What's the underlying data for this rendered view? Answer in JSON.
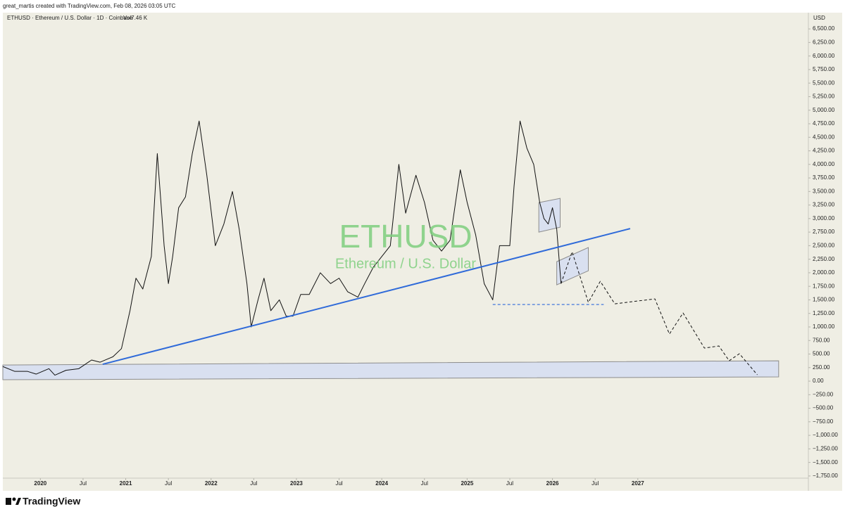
{
  "attribution": "great_martis created with TradingView.com, Feb 08, 2026 03:05 UTC",
  "branding": "TradingView",
  "chart_data": {
    "type": "line",
    "symbol_line": "ETHUSD · Ethereum / U.S. Dollar · 1D · Coinbase",
    "volume": "Vol7.46 K",
    "watermark": "ETHUSD",
    "watermark_subtitle": "Ethereum / U.S. Dollar",
    "y_axis_label": "USD",
    "grid": false,
    "xlim": [
      2019.56,
      2028.99
    ],
    "ylim": [
      -1790,
      6800
    ],
    "xticks": [
      {
        "value": 2020,
        "label": "2020"
      },
      {
        "value": 2020.5,
        "label": "Jul"
      },
      {
        "value": 2021,
        "label": "2021"
      },
      {
        "value": 2021.5,
        "label": "Jul"
      },
      {
        "value": 2022,
        "label": "2022"
      },
      {
        "value": 2022.5,
        "label": "Jul"
      },
      {
        "value": 2023,
        "label": "2023"
      },
      {
        "value": 2023.5,
        "label": "Jul"
      },
      {
        "value": 2024,
        "label": "2024"
      },
      {
        "value": 2024.5,
        "label": "Jul"
      },
      {
        "value": 2025,
        "label": "2025"
      },
      {
        "value": 2025.5,
        "label": "Jul"
      },
      {
        "value": 2026,
        "label": "2026"
      },
      {
        "value": 2026.5,
        "label": "Jul"
      },
      {
        "value": 2027,
        "label": "2027"
      }
    ],
    "yticks": [
      {
        "value": 6500,
        "label": "6,500.00"
      },
      {
        "value": 6250,
        "label": "6,250.00"
      },
      {
        "value": 6000,
        "label": "6,000.00"
      },
      {
        "value": 5750,
        "label": "5,750.00"
      },
      {
        "value": 5500,
        "label": "5,500.00"
      },
      {
        "value": 5250,
        "label": "5,250.00"
      },
      {
        "value": 5000,
        "label": "5,000.00"
      },
      {
        "value": 4750,
        "label": "4,750.00"
      },
      {
        "value": 4500,
        "label": "4,500.00"
      },
      {
        "value": 4250,
        "label": "4,250.00"
      },
      {
        "value": 4000,
        "label": "4,000.00"
      },
      {
        "value": 3750,
        "label": "3,750.00"
      },
      {
        "value": 3500,
        "label": "3,500.00"
      },
      {
        "value": 3250,
        "label": "3,250.00"
      },
      {
        "value": 3000,
        "label": "3,000.00"
      },
      {
        "value": 2750,
        "label": "2,750.00"
      },
      {
        "value": 2500,
        "label": "2,500.00"
      },
      {
        "value": 2250,
        "label": "2,250.00"
      },
      {
        "value": 2000,
        "label": "2,000.00"
      },
      {
        "value": 1750,
        "label": "1,750.00"
      },
      {
        "value": 1500,
        "label": "1,500.00"
      },
      {
        "value": 1250,
        "label": "1,250.00"
      },
      {
        "value": 1000,
        "label": "1,000.00"
      },
      {
        "value": 750,
        "label": "750.00"
      },
      {
        "value": 500,
        "label": "500.00"
      },
      {
        "value": 250,
        "label": "250.00"
      },
      {
        "value": 0,
        "label": "0.00"
      },
      {
        "value": -250,
        "label": "−250.00"
      },
      {
        "value": -500,
        "label": "−500.00"
      },
      {
        "value": -750,
        "label": "−750.00"
      },
      {
        "value": -1000,
        "label": "−1,000.00"
      },
      {
        "value": -1250,
        "label": "−1,250.00"
      },
      {
        "value": -1500,
        "label": "−1,500.00"
      },
      {
        "value": -1750,
        "label": "−1,750.00"
      }
    ],
    "series": [
      {
        "color": "#111111",
        "width": 1,
        "dashed": false,
        "x": [
          2019.56,
          2019.7,
          2019.85,
          2019.95,
          2020.1,
          2020.17,
          2020.3,
          2020.45,
          2020.6,
          2020.7,
          2020.85,
          2020.95,
          2021.05,
          2021.12,
          2021.2,
          2021.3,
          2021.37,
          2021.45,
          2021.5,
          2021.55,
          2021.62,
          2021.7,
          2021.78,
          2021.86,
          2021.95,
          2022.05,
          2022.15,
          2022.25,
          2022.33,
          2022.42,
          2022.47,
          2022.55,
          2022.62,
          2022.7,
          2022.8,
          2022.88,
          2022.96,
          2023.05,
          2023.15,
          2023.28,
          2023.4,
          2023.5,
          2023.6,
          2023.72,
          2023.8,
          2023.9,
          2024.0,
          2024.1,
          2024.2,
          2024.28,
          2024.4,
          2024.5,
          2024.6,
          2024.7,
          2024.8,
          2024.92,
          2025.0,
          2025.1,
          2025.2,
          2025.3,
          2025.38,
          2025.5,
          2025.55,
          2025.62,
          2025.7,
          2025.78,
          2025.85,
          2025.9,
          2025.95,
          2026.0,
          2026.05,
          2026.08,
          2026.1
        ],
        "values": [
          270,
          180,
          180,
          130,
          230,
          110,
          200,
          230,
          390,
          350,
          450,
          600,
          1300,
          1900,
          1700,
          2300,
          4200,
          2500,
          1800,
          2300,
          3200,
          3400,
          4200,
          4800,
          3800,
          2500,
          2900,
          3500,
          2800,
          1800,
          1000,
          1500,
          1900,
          1300,
          1500,
          1200,
          1200,
          1600,
          1600,
          2000,
          1800,
          1900,
          1650,
          1550,
          1800,
          2100,
          2300,
          2500,
          4000,
          3100,
          3800,
          3300,
          2600,
          2400,
          2600,
          3900,
          3300,
          2700,
          1800,
          1500,
          2500,
          2500,
          3600,
          4800,
          4300,
          4000,
          3300,
          3000,
          2900,
          3200,
          2800,
          2200,
          1800
        ]
      },
      {
        "color": "#111111",
        "width": 1,
        "dashed": true,
        "x": [
          2026.1,
          2026.23,
          2026.42,
          2026.56,
          2026.73,
          2027.2,
          2027.37,
          2027.53,
          2027.78,
          2027.95,
          2028.07,
          2028.19,
          2028.4
        ],
        "values": [
          1800,
          2387,
          1453,
          1842,
          1427,
          1518,
          869,
          1258,
          610,
          649,
          376,
          506,
          117
        ]
      },
      {
        "color": "#2f6ad9",
        "width": 2,
        "dashed": false,
        "x": [
          2020.73,
          2026.91
        ],
        "values": [
          311,
          2815
        ]
      },
      {
        "color": "#2f6ad9",
        "width": 1.2,
        "dashed": true,
        "x": [
          2025.3,
          2026.6
        ],
        "values": [
          1414,
          1414
        ]
      }
    ],
    "zones": [
      {
        "color": "#d5ddf2",
        "x": [
          2019.56,
          2028.65,
          2028.65,
          2019.56
        ],
        "values": [
          298,
          376,
          78,
          26
        ]
      },
      {
        "color": "#d5ddf2",
        "x": [
          2025.84,
          2026.09,
          2026.09,
          2025.84
        ],
        "values": [
          3295,
          3373,
          2841,
          2750
        ]
      },
      {
        "color": "#d5ddf2",
        "x": [
          2026.05,
          2026.42,
          2026.42,
          2026.05
        ],
        "values": [
          2205,
          2465,
          2037,
          1777
        ]
      }
    ]
  }
}
